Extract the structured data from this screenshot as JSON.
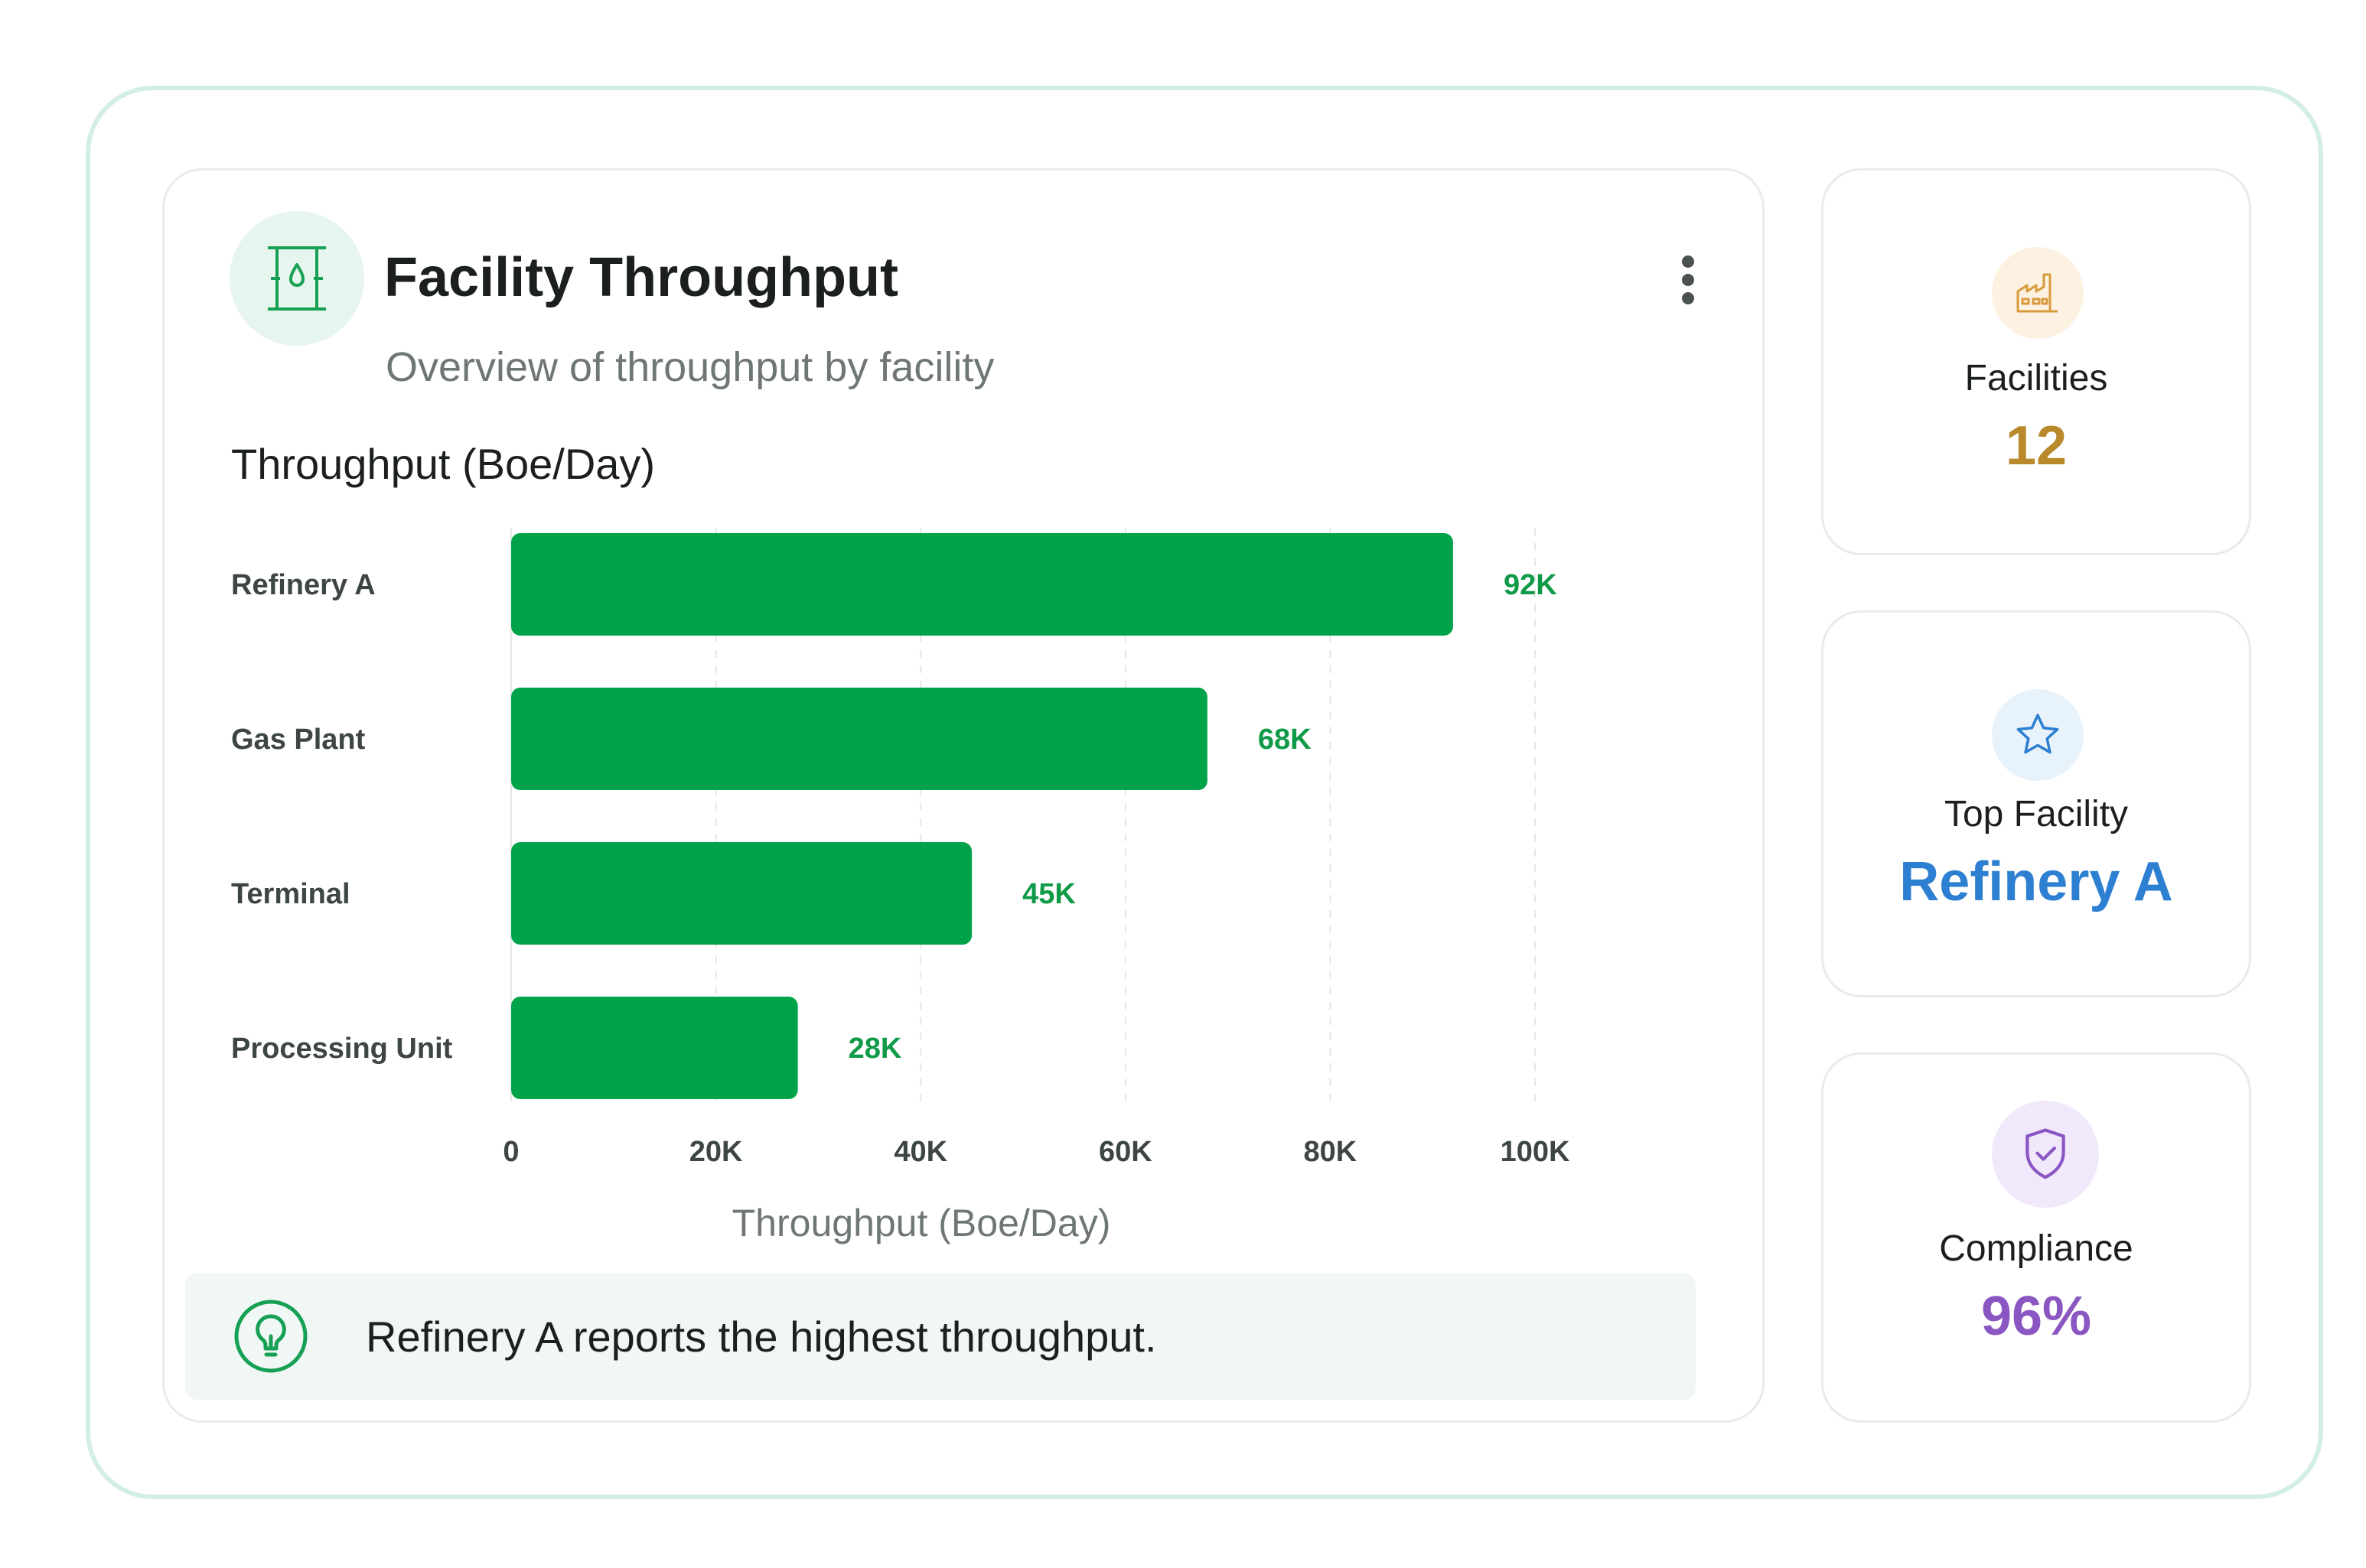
{
  "header": {
    "title": "Facility Throughput",
    "subtitle": "Overview of throughput by facility",
    "icon": "oil-barrel-icon"
  },
  "chart_heading": "Throughput (Boe/Day)",
  "chart_data": {
    "type": "bar",
    "orientation": "horizontal",
    "categories": [
      "Refinery A",
      "Gas Plant",
      "Terminal",
      "Processing Unit"
    ],
    "values": [
      92000,
      68000,
      45000,
      28000
    ],
    "data_labels": [
      "92K",
      "68K",
      "45K",
      "28K"
    ],
    "xlim": [
      0,
      100000
    ],
    "x_ticks": [
      0,
      20000,
      40000,
      60000,
      80000,
      100000
    ],
    "x_tick_labels": [
      "0",
      "20K",
      "40K",
      "60K",
      "80K",
      "100K"
    ],
    "xlabel": "Throughput (Boe/Day)",
    "grid": "vertical dashed",
    "bar_color": "#00a34a",
    "label_color": "#0f9a47"
  },
  "insight": {
    "icon": "lightbulb-icon",
    "text": "Refinery A reports the highest throughput."
  },
  "stats": [
    {
      "icon": "factory-icon",
      "label": "Facilities",
      "value": "12",
      "color": "#b88a2c",
      "icon_bg": "#fdf1e2"
    },
    {
      "icon": "star-icon",
      "label": "Top Facility",
      "value": "Refinery A",
      "color": "#2c7fd1",
      "icon_bg": "#e8f2fb"
    },
    {
      "icon": "shield-check-icon",
      "label": "Compliance",
      "value": "96%",
      "color": "#8a56c2",
      "icon_bg": "#f1e9fb"
    }
  ]
}
